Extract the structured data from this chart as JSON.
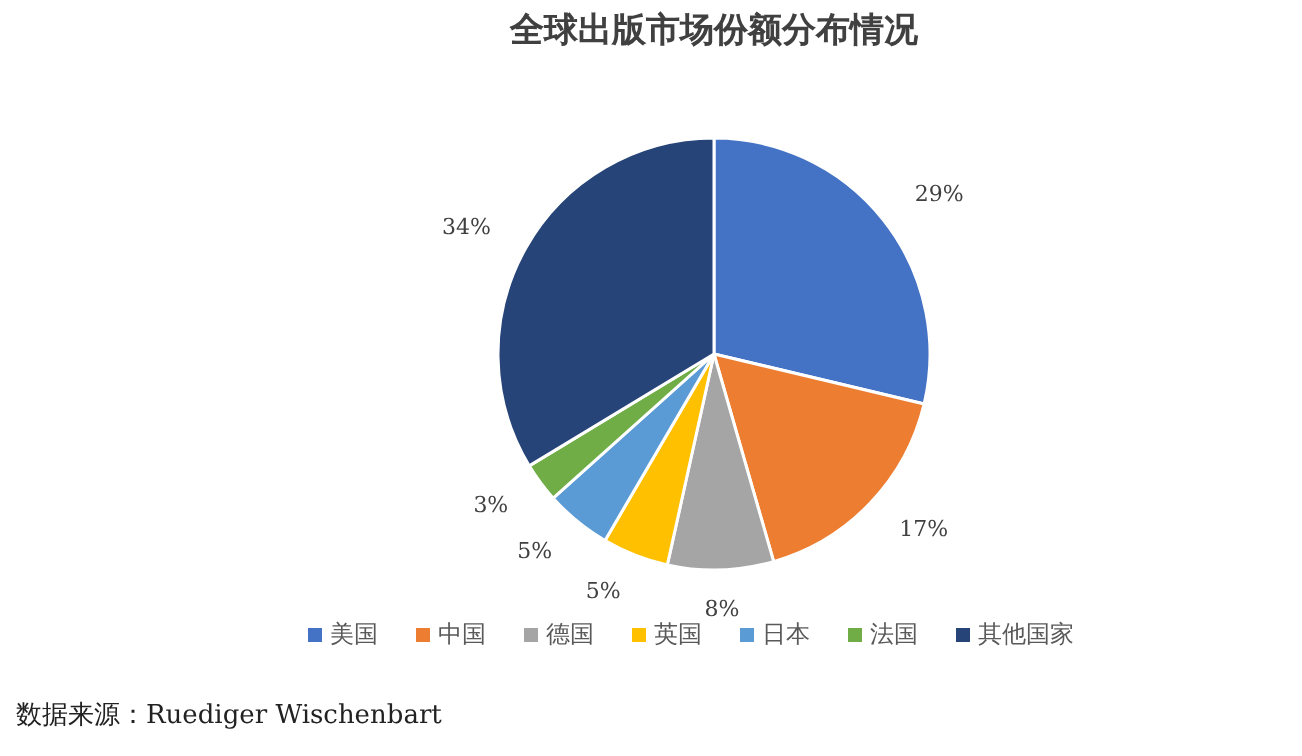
{
  "chart_data": {
    "type": "pie",
    "title": "全球出版市场份额分布情况",
    "categories": [
      "美国",
      "中国",
      "德国",
      "英国",
      "日本",
      "法国",
      "其他国家"
    ],
    "values": [
      29,
      17,
      8,
      5,
      5,
      3,
      34
    ],
    "value_labels": [
      "29%",
      "17%",
      "8%",
      "5%",
      "5%",
      "3%",
      "34%"
    ],
    "colors": [
      "#4472c4",
      "#ed7d31",
      "#a5a5a5",
      "#ffc000",
      "#5b9bd5",
      "#70ad47",
      "#264478"
    ],
    "legend": "bottom",
    "annotations": [
      "数据来源：Ruediger Wischenbart"
    ]
  }
}
